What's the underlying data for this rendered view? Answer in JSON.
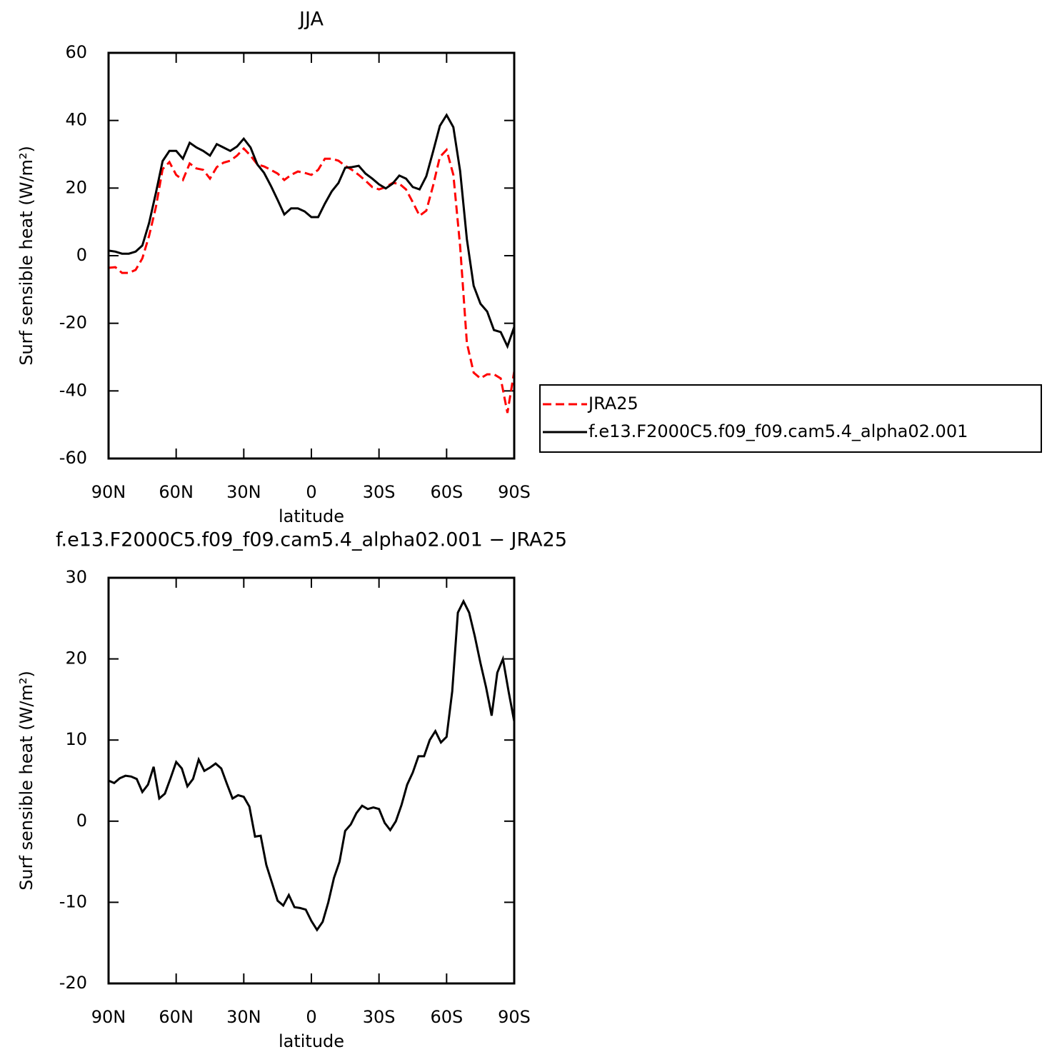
{
  "chart_data": [
    {
      "type": "line",
      "title": "JJA",
      "xlabel": "latitude",
      "ylabel": "Surf sensible heat (W/m²)",
      "x": [
        90,
        87,
        84,
        81,
        78,
        75,
        72,
        69,
        66,
        63,
        60,
        57,
        54,
        51,
        48,
        45,
        42,
        39,
        36,
        33,
        30,
        27,
        24,
        21,
        18,
        15,
        12,
        9,
        6,
        3,
        0,
        -3,
        -6,
        -9,
        -12,
        -15,
        -18,
        -21,
        -24,
        -27,
        -30,
        -33,
        -36,
        -39,
        -42,
        -45,
        -48,
        -51,
        -54,
        -57,
        -60,
        -63,
        -66,
        -69,
        -72,
        -75,
        -78,
        -81,
        -84,
        -87,
        -90
      ],
      "series": [
        {
          "name": "JRA25",
          "color": "#ff0000",
          "dash": "dashed",
          "values": [
            -3.6,
            -3.4,
            -5.1,
            -5.1,
            -4.2,
            -0.8,
            5.9,
            14.4,
            25.6,
            27.7,
            23.9,
            22.4,
            27.3,
            25.8,
            25.4,
            22.8,
            26.2,
            27.5,
            28.1,
            29.6,
            31.7,
            29.6,
            27,
            26.4,
            25.4,
            24.3,
            22.4,
            23.9,
            24.9,
            24.5,
            23.9,
            25.4,
            28.7,
            28.7,
            28.1,
            26.6,
            25.4,
            23.9,
            22.2,
            20.3,
            19.6,
            20.3,
            21.5,
            21.3,
            19.6,
            15.8,
            11.8,
            13.3,
            20.7,
            29.2,
            31.3,
            23.9,
            2.7,
            -25.8,
            -34.6,
            -36.3,
            -35.1,
            -35.1,
            -36.3,
            -46.5,
            -34.2
          ]
        },
        {
          "name": "f.e13.F2000C5.f09_f09.cam5.4_alpha02.001",
          "color": "#000000",
          "dash": "solid",
          "values": [
            1.5,
            1.2,
            0.6,
            0.6,
            1.2,
            3,
            9.7,
            18.6,
            28,
            31,
            31,
            28.7,
            33.4,
            32,
            31,
            29.6,
            33,
            32,
            31,
            32.3,
            34.6,
            32,
            27,
            24.5,
            20.7,
            16.5,
            12.2,
            14,
            14,
            13.1,
            11.4,
            11.4,
            15.4,
            19,
            21.5,
            26,
            26.2,
            26.6,
            24.3,
            22.8,
            21.1,
            19.9,
            21.3,
            23.7,
            22.8,
            20.3,
            19.6,
            23.5,
            30.8,
            38.4,
            41.6,
            38,
            25,
            4.9,
            -8.9,
            -14.2,
            -16.5,
            -22,
            -22.6,
            -26.8,
            -21.1
          ]
        }
      ],
      "xlim": [
        90,
        -90
      ],
      "xticks": [
        {
          "value": 90,
          "label": "90N"
        },
        {
          "value": 60,
          "label": "60N"
        },
        {
          "value": 30,
          "label": "30N"
        },
        0,
        {
          "value": -30,
          "label": "30S"
        },
        {
          "value": -60,
          "label": "60S"
        },
        {
          "value": -90,
          "label": "90S"
        }
      ],
      "ylim": [
        -60,
        60
      ],
      "yticks": [
        60,
        40,
        20,
        0,
        -20,
        -40,
        -60
      ],
      "grid": false,
      "legend": "right"
    },
    {
      "type": "line",
      "title": "f.e13.F2000C5.f09_f09.cam5.4_alpha02.001 − JRA25",
      "xlabel": "latitude",
      "ylabel": "Surf sensible heat (W/m²)",
      "x": [
        90,
        87.5,
        85,
        82.5,
        80,
        77.5,
        75,
        72.5,
        70,
        67.5,
        65,
        62.5,
        60,
        57.5,
        55,
        52.5,
        50,
        47.5,
        45,
        42.5,
        40,
        37.5,
        35,
        32.5,
        30,
        27.5,
        25,
        22.5,
        20,
        17.5,
        15,
        12.5,
        10,
        7.5,
        5,
        2.5,
        0,
        -2.5,
        -5,
        -7.5,
        -10,
        -12.5,
        -15,
        -17.5,
        -20,
        -22.5,
        -25,
        -27.5,
        -30,
        -32.5,
        -35,
        -37.5,
        -40,
        -42.5,
        -45,
        -47.5,
        -50,
        -52.5,
        -55,
        -57.5,
        -60,
        -62.5,
        -65,
        -67.5,
        -70,
        -72.5,
        -75,
        -77.5,
        -80,
        -82.5,
        -85,
        -87.5,
        -90
      ],
      "values": [
        5,
        4.7,
        5.3,
        5.6,
        5.5,
        5.2,
        3.6,
        4.5,
        6.7,
        2.8,
        3.4,
        5.3,
        7.3,
        6.5,
        4.3,
        5.2,
        7.6,
        6.2,
        6.6,
        7.1,
        6.5,
        4.6,
        2.8,
        3.2,
        3,
        1.8,
        -1.9,
        -1.8,
        -5.4,
        -7.6,
        -9.8,
        -10.4,
        -9.1,
        -10.6,
        -10.7,
        -10.9,
        -12.3,
        -13.4,
        -12.4,
        -10,
        -7,
        -5,
        -1.2,
        -0.4,
        1,
        1.9,
        1.5,
        1.7,
        1.5,
        -0.2,
        -1.1,
        0,
        2,
        4.5,
        6,
        8,
        8,
        10,
        11.1,
        9.7,
        10.4,
        16,
        25.7,
        27.1,
        25.7,
        22.8,
        19.5,
        16.5,
        13,
        18.3,
        20,
        16,
        12.3
      ],
      "color": "#000000",
      "xlim": [
        90,
        -90
      ],
      "xticks": [
        {
          "value": 90,
          "label": "90N"
        },
        {
          "value": 60,
          "label": "60N"
        },
        {
          "value": 30,
          "label": "30N"
        },
        0,
        {
          "value": -30,
          "label": "30S"
        },
        {
          "value": -60,
          "label": "60S"
        },
        {
          "value": -90,
          "label": "90S"
        }
      ],
      "ylim": [
        -20,
        30
      ],
      "yticks": [
        30,
        20,
        10,
        0,
        -10,
        -20
      ],
      "grid": false
    }
  ]
}
